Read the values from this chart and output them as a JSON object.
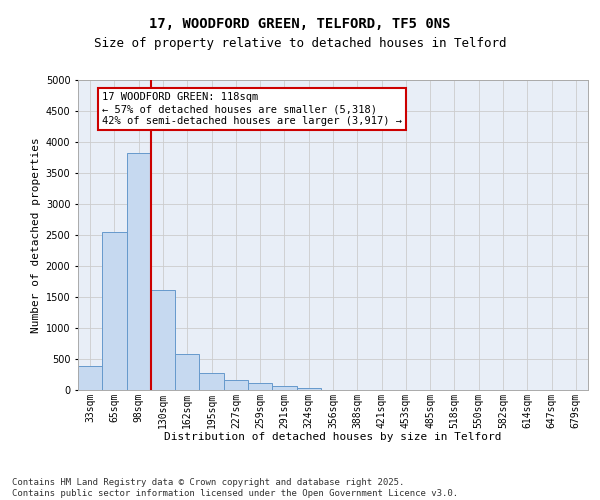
{
  "title1": "17, WOODFORD GREEN, TELFORD, TF5 0NS",
  "title2": "Size of property relative to detached houses in Telford",
  "xlabel": "Distribution of detached houses by size in Telford",
  "ylabel": "Number of detached properties",
  "categories": [
    "33sqm",
    "65sqm",
    "98sqm",
    "130sqm",
    "162sqm",
    "195sqm",
    "227sqm",
    "259sqm",
    "291sqm",
    "324sqm",
    "356sqm",
    "388sqm",
    "421sqm",
    "453sqm",
    "485sqm",
    "518sqm",
    "550sqm",
    "582sqm",
    "614sqm",
    "647sqm",
    "679sqm"
  ],
  "values": [
    390,
    2550,
    3820,
    1620,
    580,
    270,
    155,
    110,
    60,
    40,
    0,
    0,
    0,
    0,
    0,
    0,
    0,
    0,
    0,
    0,
    0
  ],
  "bar_color": "#c6d9f0",
  "bar_edge_color": "#6699cc",
  "vline_x": 3,
  "vline_color": "#cc0000",
  "annotation_text": "17 WOODFORD GREEN: 118sqm\n← 57% of detached houses are smaller (5,318)\n42% of semi-detached houses are larger (3,917) →",
  "annotation_box_color": "#ffffff",
  "annotation_box_edge_color": "#cc0000",
  "ylim": [
    0,
    5000
  ],
  "yticks": [
    0,
    500,
    1000,
    1500,
    2000,
    2500,
    3000,
    3500,
    4000,
    4500,
    5000
  ],
  "grid_color": "#cccccc",
  "bg_color": "#e8eef7",
  "footer_text": "Contains HM Land Registry data © Crown copyright and database right 2025.\nContains public sector information licensed under the Open Government Licence v3.0.",
  "title1_fontsize": 10,
  "title2_fontsize": 9,
  "xlabel_fontsize": 8,
  "ylabel_fontsize": 8,
  "tick_fontsize": 7,
  "annotation_fontsize": 7.5,
  "footer_fontsize": 6.5
}
